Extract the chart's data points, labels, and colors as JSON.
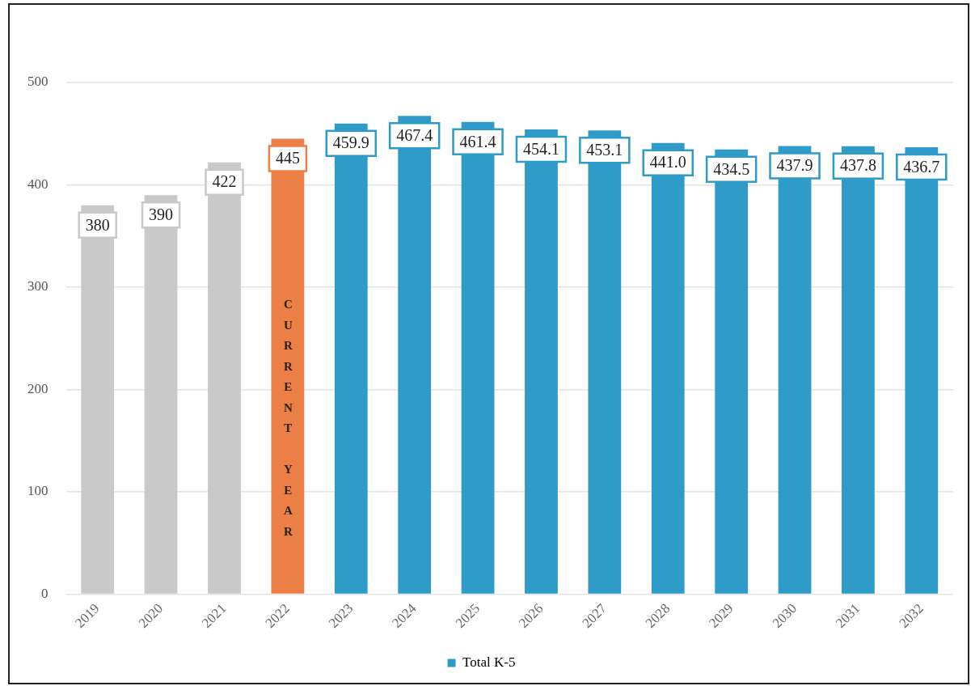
{
  "chart_data": {
    "type": "bar",
    "categories": [
      "2019",
      "2020",
      "2021",
      "2022",
      "2023",
      "2024",
      "2025",
      "2026",
      "2027",
      "2028",
      "2029",
      "2030",
      "2031",
      "2032"
    ],
    "series": [
      {
        "name": "Total K-5",
        "color": "#2e9bc9",
        "colors": [
          "#c9c9c9",
          "#c9c9c9",
          "#c9c9c9",
          "#ec7f45",
          "#2e9bc9",
          "#2e9bc9",
          "#2e9bc9",
          "#2e9bc9",
          "#2e9bc9",
          "#2e9bc9",
          "#2e9bc9",
          "#2e9bc9",
          "#2e9bc9",
          "#2e9bc9"
        ],
        "values": [
          380,
          390,
          422,
          445,
          459.9,
          467.4,
          461.4,
          454.1,
          453.1,
          441.0,
          434.5,
          437.9,
          437.8,
          436.7
        ],
        "value_labels": [
          "380",
          "390",
          "422",
          "445",
          "459.9",
          "467.4",
          "461.4",
          "454.1",
          "453.1",
          "441.0",
          "434.5",
          "437.9",
          "437.8",
          "436.7"
        ]
      }
    ],
    "ylim": [
      0,
      500
    ],
    "yticks": [
      0,
      100,
      200,
      300,
      400,
      500
    ],
    "grid": "y",
    "legend": "bottom",
    "annotations": [
      "CURRENT YEAR"
    ]
  }
}
